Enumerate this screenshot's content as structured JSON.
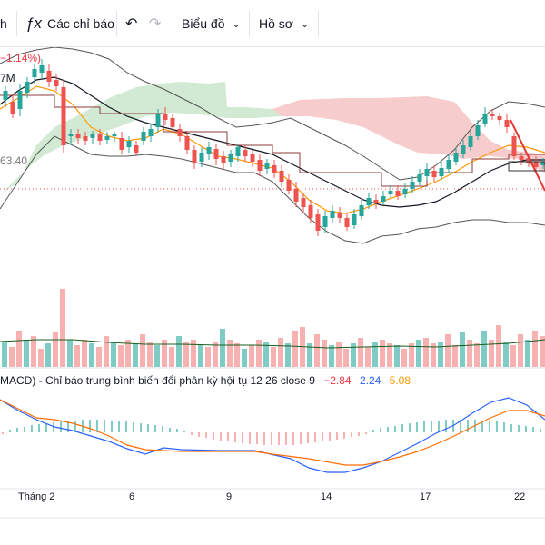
{
  "toolbar": {
    "left_cut_label": "h",
    "indicators_label": "Các chỉ báo",
    "undo_icon": "undo-icon",
    "redo_icon": "redo-icon",
    "chart_menu_label": "Biểu đồ",
    "profile_menu_label": "Hồ sơ"
  },
  "price_pane": {
    "change_text": "−1.14%)",
    "volume_text": "7M",
    "level_text": "63.40"
  },
  "macd_legend": {
    "name": "MACD) - Chỉ báo trung bình biến đổi phân kỳ hội tụ 12 26 close 9",
    "hist_value": "−2.84",
    "macd_value": "2.24",
    "signal_value": "5.08"
  },
  "x_axis": {
    "labels": [
      "Tháng 2",
      "6",
      "9",
      "14",
      "17",
      "22"
    ]
  },
  "colors": {
    "up": "#26a69a",
    "down": "#ef5350",
    "macd_line": "#2962ff",
    "signal_line": "#ff6d00",
    "hist_value_color": "#f23645",
    "macd_value_color": "#2962ff",
    "signal_value_color": "#ff9800"
  }
}
